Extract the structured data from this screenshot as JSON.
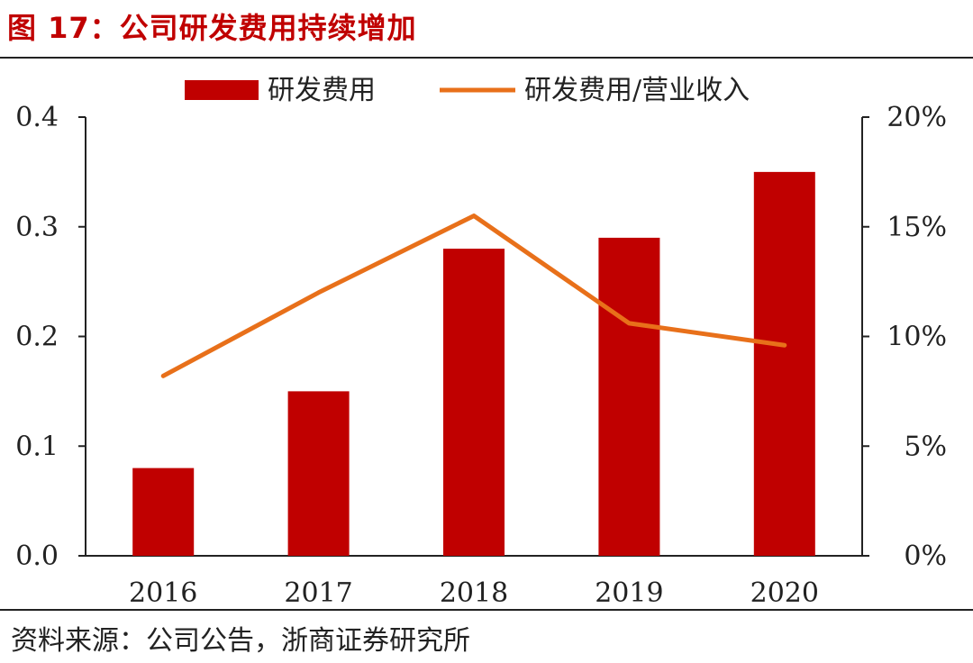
{
  "figure_title": "图 17：公司研发费用持续增加",
  "source_note": "资料来源：公司公告，浙商证券研究所",
  "colors": {
    "bar": "#c00000",
    "line": "#e8701a",
    "axis": "#222222",
    "title": "#c00000"
  },
  "chart_data": {
    "type": "bar",
    "categories": [
      "2016",
      "2017",
      "2018",
      "2019",
      "2020"
    ],
    "series": [
      {
        "name": "研发费用",
        "kind": "bar",
        "axis": "left",
        "values": [
          0.08,
          0.15,
          0.28,
          0.29,
          0.35
        ]
      },
      {
        "name": "研发费用/营业收入",
        "kind": "line",
        "axis": "right",
        "values": [
          0.082,
          0.12,
          0.155,
          0.106,
          0.096
        ]
      }
    ],
    "y_left": {
      "min": 0,
      "max": 0.4,
      "ticks": [
        "0.0",
        "0.1",
        "0.2",
        "0.3",
        "0.4"
      ]
    },
    "y_right": {
      "min": 0,
      "max": 0.2,
      "ticks": [
        "0%",
        "5%",
        "10%",
        "15%",
        "20%"
      ]
    },
    "legend_position": "top-center",
    "grid": false
  }
}
